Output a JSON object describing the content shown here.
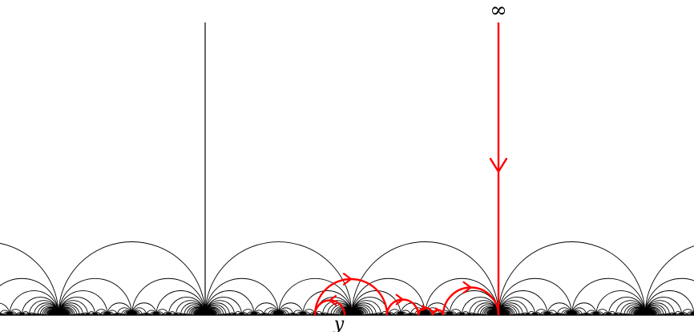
{
  "labels": {
    "top": "∞",
    "bottom": "y"
  },
  "colors": {
    "tessellation": "#000000",
    "path": "#ff0000",
    "background": "#ffffff"
  }
}
